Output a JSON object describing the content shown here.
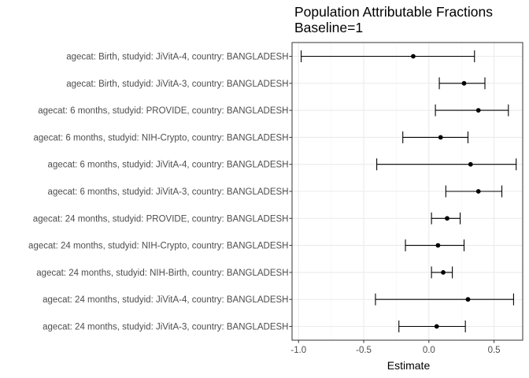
{
  "chart_data": {
    "type": "forest",
    "title": "Population Attributable Fractions",
    "subtitle": "Baseline=1",
    "xlabel": "Estimate",
    "ylabel": "",
    "xlim": [
      -1.05,
      0.72
    ],
    "xticks": [
      -1.0,
      -0.5,
      0.0,
      0.5
    ],
    "xtick_labels": [
      "-1.0",
      "-0.5",
      "0.0",
      "0.5"
    ],
    "grid": true,
    "categories": [
      "agecat: Birth, studyid: JiVitA-4, country: BANGLADESH",
      "agecat: Birth, studyid: JiVitA-3, country: BANGLADESH",
      "agecat: 6 months, studyid: PROVIDE, country: BANGLADESH",
      "agecat: 6 months, studyid: NIH-Crypto, country: BANGLADESH",
      "agecat: 6 months, studyid: JiVitA-4, country: BANGLADESH",
      "agecat: 6 months, studyid: JiVitA-3, country: BANGLADESH",
      "agecat: 24 months, studyid: PROVIDE, country: BANGLADESH",
      "agecat: 24 months, studyid: NIH-Crypto, country: BANGLADESH",
      "agecat: 24 months, studyid: NIH-Birth, country: BANGLADESH",
      "agecat: 24 months, studyid: JiVitA-4, country: BANGLADESH",
      "agecat: 24 months, studyid: JiVitA-3, country: BANGLADESH"
    ],
    "estimate": [
      -0.12,
      0.27,
      0.38,
      0.09,
      0.32,
      0.38,
      0.14,
      0.07,
      0.11,
      0.3,
      0.06
    ],
    "lower": [
      -0.98,
      0.08,
      0.05,
      -0.2,
      -0.4,
      0.13,
      0.02,
      -0.18,
      0.02,
      -0.41,
      -0.23
    ],
    "upper": [
      0.35,
      0.43,
      0.61,
      0.3,
      0.67,
      0.56,
      0.24,
      0.27,
      0.18,
      0.65,
      0.28
    ],
    "colors": {
      "panel_border": "#333333",
      "grid_major": "#ebebeb",
      "grid_minor": "#f5f5f5",
      "mark": "#000000",
      "tick": "#333333"
    }
  }
}
